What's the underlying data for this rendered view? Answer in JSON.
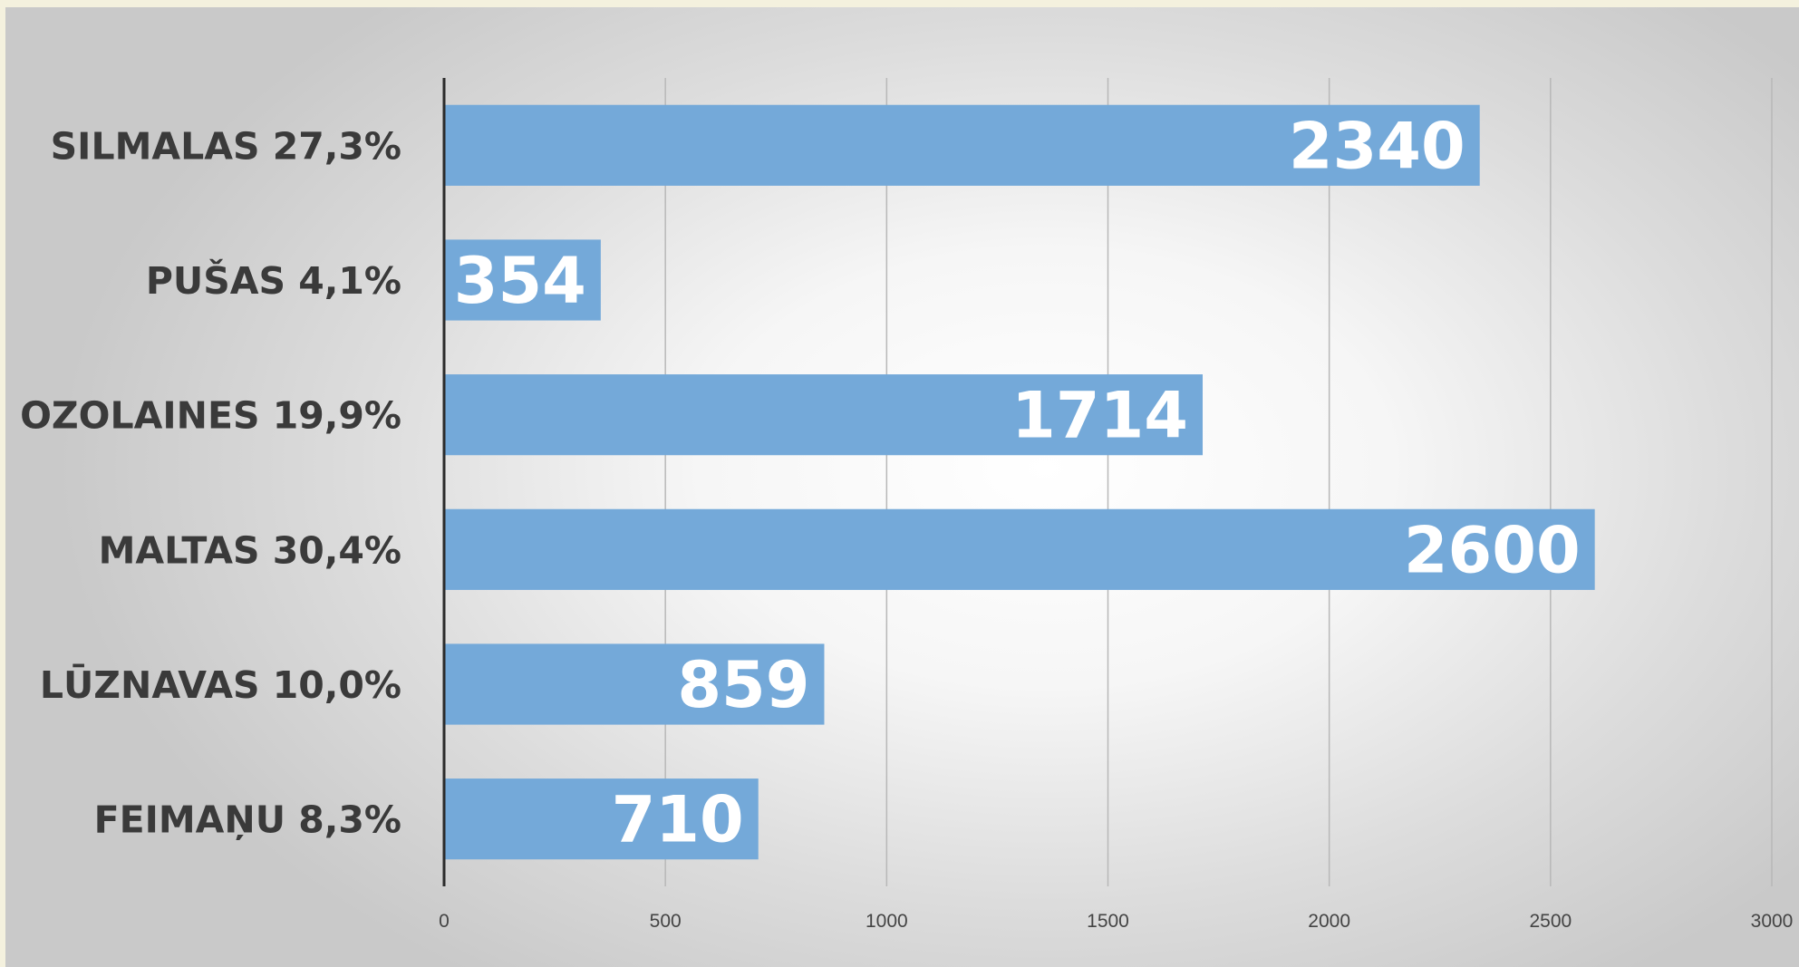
{
  "chart_data": {
    "type": "bar",
    "orientation": "horizontal",
    "categories": [
      "SILMALAS 27,3%",
      "PUŠAS 4,1%",
      "OZOLAINES 19,9%",
      "MALTAS 30,4%",
      "LŪZNAVAS 10,0%",
      "FEIMAŅU 8,3%"
    ],
    "values": [
      2340,
      354,
      1714,
      2600,
      859,
      710
    ],
    "value_labels": [
      "2340",
      "354",
      "1714",
      "2600",
      "859",
      "710"
    ],
    "xlim": [
      0,
      3000
    ],
    "x_ticks": [
      0,
      500,
      1000,
      1500,
      2000,
      2500,
      3000
    ],
    "x_tick_labels": [
      "0",
      "500",
      "1000",
      "1500",
      "2000",
      "2500",
      "3000"
    ],
    "grid": "vertical",
    "legend": "none",
    "bar_color": "#74a9d9"
  }
}
